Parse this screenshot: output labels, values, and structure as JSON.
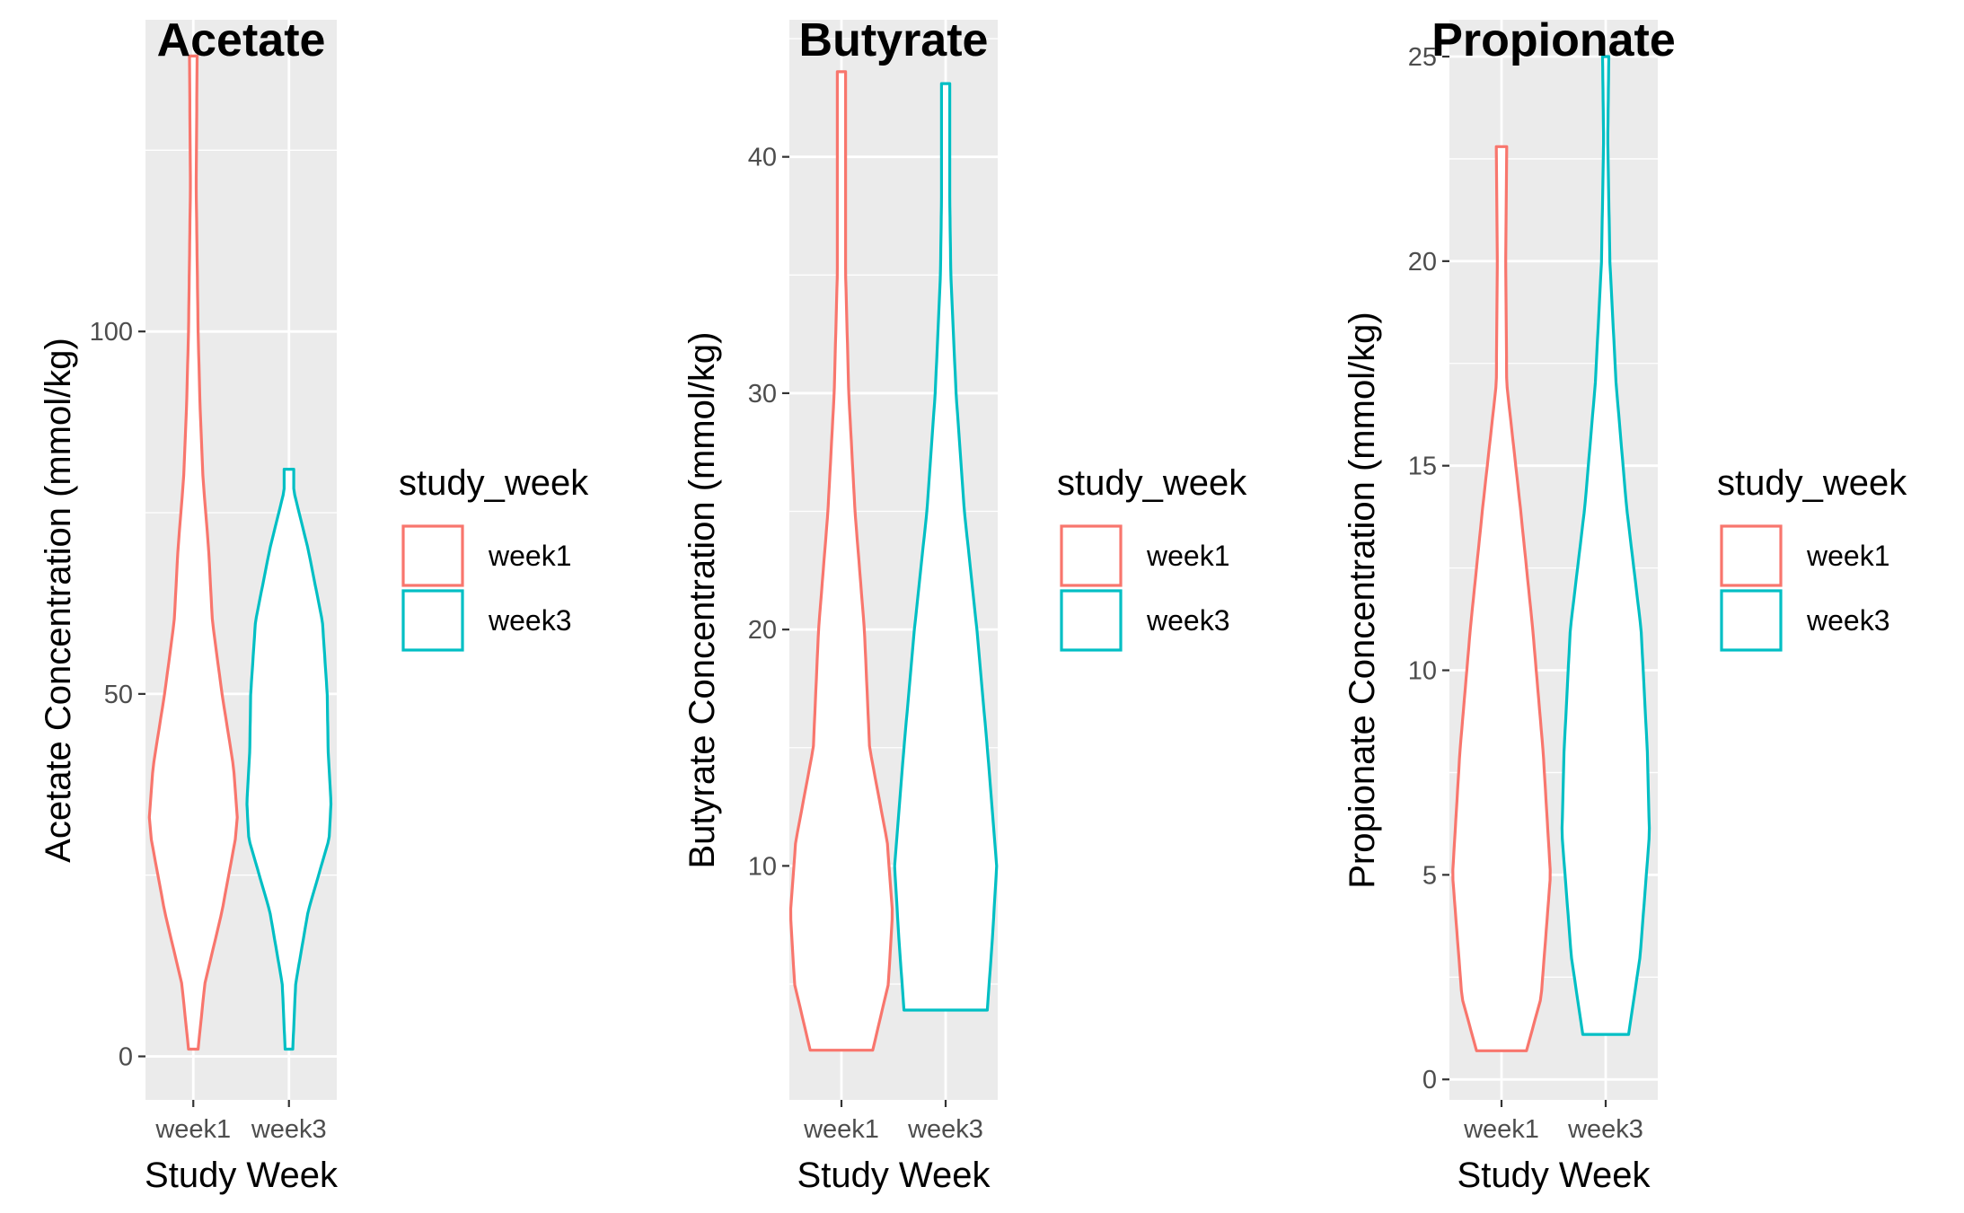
{
  "chart_data": [
    {
      "type": "violin",
      "title": "Acetate",
      "xlabel": "Study Week",
      "ylabel": "Acetate Concentration (mmol/kg)",
      "categories": [
        "week1",
        "week3"
      ],
      "ylim": [
        -6,
        143
      ],
      "yticks": [
        0,
        50,
        100
      ],
      "ytick_labels": [
        "0",
        "50",
        "100"
      ],
      "grid": true,
      "legend": {
        "title": "study_week",
        "entries": [
          "week1",
          "week3"
        ],
        "position": "right"
      },
      "series": [
        {
          "name": "week1",
          "color": "#F8766D",
          "min": 1,
          "max": 138,
          "profile": [
            [
              1,
              0.05
            ],
            [
              10,
              0.12
            ],
            [
              20,
              0.3
            ],
            [
              30,
              0.44
            ],
            [
              33,
              0.46
            ],
            [
              40,
              0.42
            ],
            [
              50,
              0.3
            ],
            [
              60,
              0.2
            ],
            [
              70,
              0.16
            ],
            [
              80,
              0.1
            ],
            [
              90,
              0.07
            ],
            [
              100,
              0.05
            ],
            [
              110,
              0.04
            ],
            [
              120,
              0.03
            ],
            [
              138,
              0.04
            ]
          ]
        },
        {
          "name": "week3",
          "color": "#00BFC4",
          "min": 1,
          "max": 81,
          "profile": [
            [
              1,
              0.04
            ],
            [
              10,
              0.07
            ],
            [
              20,
              0.2
            ],
            [
              30,
              0.42
            ],
            [
              35,
              0.44
            ],
            [
              42,
              0.41
            ],
            [
              50,
              0.4
            ],
            [
              60,
              0.35
            ],
            [
              70,
              0.2
            ],
            [
              78,
              0.05
            ],
            [
              81,
              0.05
            ]
          ]
        }
      ]
    },
    {
      "type": "violin",
      "title": "Butyrate",
      "xlabel": "Study Week",
      "ylabel": "Butyrate Concentration (mmol/kg)",
      "categories": [
        "week1",
        "week3"
      ],
      "ylim": [
        0.1,
        45.8
      ],
      "yticks": [
        10,
        20,
        30,
        40
      ],
      "ytick_labels": [
        "10",
        "20",
        "30",
        "40"
      ],
      "grid": true,
      "legend": {
        "title": "study_week",
        "entries": [
          "week1",
          "week3"
        ],
        "position": "right"
      },
      "series": [
        {
          "name": "week1",
          "color": "#F8766D",
          "min": 2.2,
          "max": 43.6,
          "profile": [
            [
              2.2,
              0.3
            ],
            [
              5,
              0.45
            ],
            [
              8,
              0.49
            ],
            [
              11,
              0.44
            ],
            [
              15,
              0.27
            ],
            [
              20,
              0.22
            ],
            [
              25,
              0.13
            ],
            [
              30,
              0.07
            ],
            [
              35,
              0.04
            ],
            [
              43.6,
              0.04
            ]
          ]
        },
        {
          "name": "week3",
          "color": "#00BFC4",
          "min": 3.9,
          "max": 43.1,
          "profile": [
            [
              3.9,
              0.4
            ],
            [
              7,
              0.45
            ],
            [
              10,
              0.49
            ],
            [
              15,
              0.4
            ],
            [
              20,
              0.3
            ],
            [
              25,
              0.18
            ],
            [
              30,
              0.1
            ],
            [
              35,
              0.05
            ],
            [
              38,
              0.04
            ],
            [
              43.1,
              0.04
            ]
          ]
        }
      ]
    },
    {
      "type": "violin",
      "title": "Propionate",
      "xlabel": "Study Week",
      "ylabel": "Propionate Concentration (mmol/kg)",
      "categories": [
        "week1",
        "week3"
      ],
      "ylim": [
        -0.5,
        25.9
      ],
      "yticks": [
        0,
        5,
        10,
        15,
        20,
        25
      ],
      "ytick_labels": [
        "0",
        "5",
        "10",
        "15",
        "20",
        "25"
      ],
      "grid": true,
      "legend": {
        "title": "study_week",
        "entries": [
          "week1",
          "week3"
        ],
        "position": "right"
      },
      "series": [
        {
          "name": "week1",
          "color": "#F8766D",
          "min": 0.7,
          "max": 22.8,
          "profile": [
            [
              0.7,
              0.24
            ],
            [
              2,
              0.38
            ],
            [
              5,
              0.47
            ],
            [
              8,
              0.4
            ],
            [
              11,
              0.3
            ],
            [
              14,
              0.18
            ],
            [
              17,
              0.05
            ],
            [
              20,
              0.04
            ],
            [
              22.8,
              0.05
            ]
          ]
        },
        {
          "name": "week3",
          "color": "#00BFC4",
          "min": 1.1,
          "max": 25,
          "profile": [
            [
              1.1,
              0.22
            ],
            [
              3,
              0.33
            ],
            [
              6,
              0.42
            ],
            [
              8,
              0.4
            ],
            [
              11,
              0.34
            ],
            [
              14,
              0.2
            ],
            [
              17,
              0.1
            ],
            [
              20,
              0.04
            ],
            [
              23,
              0.02
            ],
            [
              25,
              0.03
            ]
          ]
        }
      ]
    }
  ]
}
